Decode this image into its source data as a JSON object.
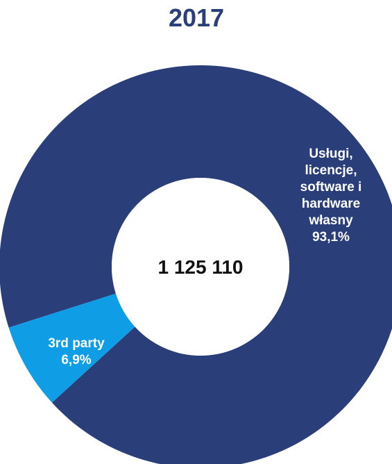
{
  "chart_data": {
    "type": "pie",
    "title": "2017",
    "center_label": "1 125 110",
    "hole": "donut",
    "slices": [
      {
        "label_lines": [
          "Usługi,",
          "licencje,",
          "software i",
          "hardware",
          "własny"
        ],
        "value": 93.1,
        "value_label": "93,1%",
        "color": "#2a3f7a"
      },
      {
        "label_lines": [
          "3rd party"
        ],
        "value": 6.9,
        "value_label": "6,9%",
        "color": "#0f9ee6"
      }
    ]
  }
}
